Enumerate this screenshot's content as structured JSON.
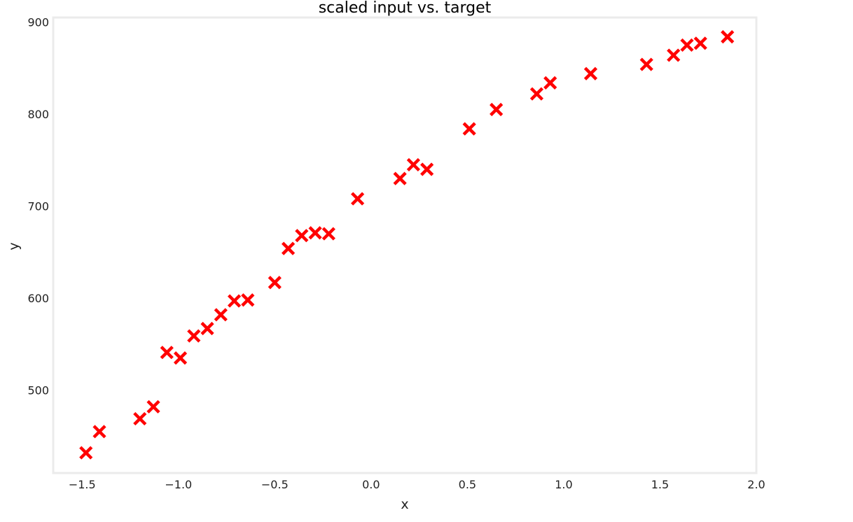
{
  "chart_data": {
    "type": "scatter",
    "title": "scaled input vs. target",
    "xlabel": "x",
    "ylabel": "y",
    "xlim": [
      -1.65,
      2.0
    ],
    "ylim": [
      410,
      905
    ],
    "xticks": [
      -1.5,
      -1.0,
      -0.5,
      0.0,
      0.5,
      1.0,
      1.5,
      2.0
    ],
    "xtick_labels": [
      "−1.5",
      "−1.0",
      "−0.5",
      "0.0",
      "0.5",
      "1.0",
      "1.5",
      "2.0"
    ],
    "yticks": [
      500,
      600,
      700,
      800,
      900
    ],
    "ytick_labels": [
      "500",
      "600",
      "700",
      "800",
      "900"
    ],
    "grid": false,
    "marker": "x",
    "marker_color": "#ff0000",
    "series": [
      {
        "points": [
          [
            -1.48,
            432
          ],
          [
            -1.41,
            455
          ],
          [
            -1.2,
            469
          ],
          [
            -1.13,
            482
          ],
          [
            -1.06,
            541
          ],
          [
            -0.99,
            535
          ],
          [
            -0.92,
            559
          ],
          [
            -0.85,
            567
          ],
          [
            -0.78,
            582
          ],
          [
            -0.71,
            597
          ],
          [
            -0.64,
            598
          ],
          [
            -0.5,
            617
          ],
          [
            -0.43,
            654
          ],
          [
            -0.36,
            668
          ],
          [
            -0.29,
            671
          ],
          [
            -0.22,
            670
          ],
          [
            -0.07,
            708
          ],
          [
            0.15,
            730
          ],
          [
            0.22,
            745
          ],
          [
            0.29,
            740
          ],
          [
            0.51,
            784
          ],
          [
            0.65,
            805
          ],
          [
            0.86,
            822
          ],
          [
            0.93,
            834
          ],
          [
            1.14,
            844
          ],
          [
            1.43,
            854
          ],
          [
            1.57,
            864
          ],
          [
            1.64,
            875
          ],
          [
            1.71,
            877
          ],
          [
            1.85,
            884
          ]
        ]
      }
    ]
  }
}
